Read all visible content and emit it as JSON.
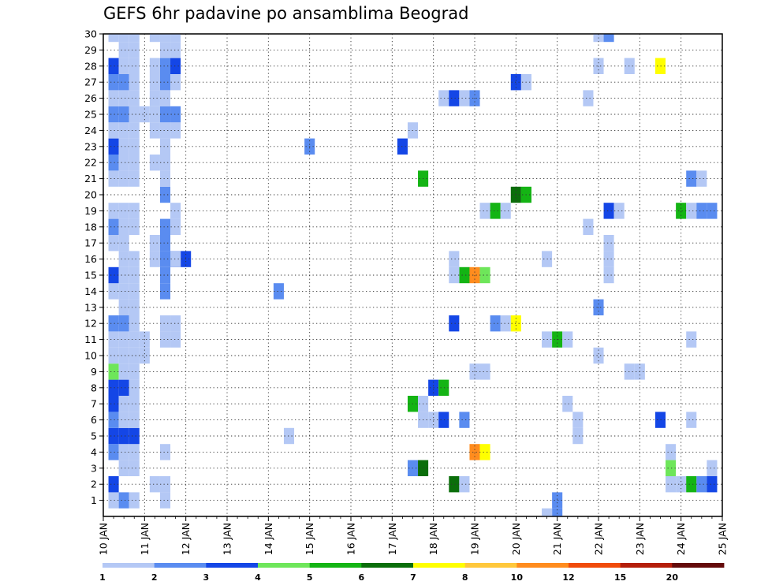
{
  "chart_data": {
    "type": "heatmap",
    "title": "GEFS 6hr padavine po ansamblima Beograd",
    "xlabel": "",
    "ylabel": "",
    "x_ticks": [
      "10 JAN",
      "11 JAN",
      "12 JAN",
      "13 JAN",
      "14 JAN",
      "15 JAN",
      "16 JAN",
      "17 JAN",
      "18 JAN",
      "19 JAN",
      "20 JAN",
      "21 JAN",
      "22 JAN",
      "23 JAN",
      "24 JAN",
      "25 JAN"
    ],
    "x_tick_days": [
      10,
      11,
      12,
      13,
      14,
      15,
      16,
      17,
      18,
      19,
      20,
      21,
      22,
      23,
      24,
      25
    ],
    "xlim": [
      10,
      25
    ],
    "y_ticks": [
      1,
      2,
      3,
      4,
      5,
      6,
      7,
      8,
      9,
      10,
      11,
      12,
      13,
      14,
      15,
      16,
      17,
      18,
      19,
      20,
      21,
      22,
      23,
      24,
      25,
      26,
      27,
      28,
      29,
      30
    ],
    "ylim": [
      0,
      30
    ],
    "grid": true,
    "colorbar": {
      "labels": [
        "1",
        "2",
        "3",
        "4",
        "5",
        "6",
        "7",
        "8",
        "10",
        "12",
        "15",
        "20"
      ],
      "colors": [
        "#b4c8f5",
        "#5a8cf0",
        "#1446e6",
        "#6ee65a",
        "#14b414",
        "#0a6e0a",
        "#ffff00",
        "#ffc83c",
        "#ff8c1e",
        "#f04b0a",
        "#b41e0a",
        "#640a0a"
      ]
    },
    "cell_step_days": 0.25,
    "cells": [
      [
        1,
        10.25,
        1
      ],
      [
        3,
        10.25,
        2
      ],
      [
        2,
        10.5,
        1
      ],
      [
        1,
        10.75,
        1
      ],
      [
        1,
        11.5,
        1
      ],
      [
        1,
        11.5,
        4
      ],
      [
        1,
        11.25,
        2
      ],
      [
        1,
        11.5,
        2
      ],
      [
        1,
        10.5,
        3
      ],
      [
        1,
        10.75,
        3
      ],
      [
        2,
        10.25,
        4
      ],
      [
        1,
        10.5,
        4
      ],
      [
        1,
        10.75,
        4
      ],
      [
        3,
        10.25,
        5
      ],
      [
        3,
        10.5,
        5
      ],
      [
        3,
        10.75,
        5
      ],
      [
        2,
        10.25,
        6
      ],
      [
        1,
        10.5,
        6
      ],
      [
        1,
        10.75,
        6
      ],
      [
        3,
        10.25,
        7
      ],
      [
        1,
        10.5,
        7
      ],
      [
        1,
        10.75,
        7
      ],
      [
        3,
        10.25,
        8
      ],
      [
        3,
        10.5,
        8
      ],
      [
        1,
        10.75,
        8
      ],
      [
        4,
        10.25,
        9
      ],
      [
        1,
        10.5,
        9
      ],
      [
        1,
        10.75,
        9
      ],
      [
        1,
        10.25,
        10
      ],
      [
        1,
        10.5,
        10
      ],
      [
        1,
        10.75,
        10
      ],
      [
        1,
        11.0,
        10
      ],
      [
        1,
        10.25,
        11
      ],
      [
        1,
        10.5,
        11
      ],
      [
        1,
        10.75,
        11
      ],
      [
        1,
        11.0,
        11
      ],
      [
        1,
        11.5,
        11
      ],
      [
        1,
        11.75,
        11
      ],
      [
        2,
        10.25,
        12
      ],
      [
        2,
        10.5,
        12
      ],
      [
        1,
        10.75,
        12
      ],
      [
        1,
        11.5,
        12
      ],
      [
        1,
        11.75,
        12
      ],
      [
        1,
        10.5,
        13
      ],
      [
        1,
        10.75,
        13
      ],
      [
        1,
        10.25,
        14
      ],
      [
        1,
        10.5,
        14
      ],
      [
        1,
        10.75,
        14
      ],
      [
        2,
        11.5,
        14
      ],
      [
        3,
        10.25,
        15
      ],
      [
        1,
        10.5,
        15
      ],
      [
        1,
        10.75,
        15
      ],
      [
        2,
        11.5,
        15
      ],
      [
        1,
        10.5,
        16
      ],
      [
        1,
        10.75,
        16
      ],
      [
        2,
        11.5,
        16
      ],
      [
        3,
        11.75,
        16
      ],
      [
        3,
        12.0,
        16
      ],
      [
        1,
        10.25,
        17
      ],
      [
        1,
        10.5,
        17
      ],
      [
        2,
        11.5,
        17
      ],
      [
        1,
        11.25,
        17
      ],
      [
        2,
        10.25,
        18
      ],
      [
        1,
        10.5,
        18
      ],
      [
        1,
        10.75,
        18
      ],
      [
        2,
        11.5,
        18
      ],
      [
        1,
        11.75,
        18
      ],
      [
        1,
        10.25,
        19
      ],
      [
        1,
        10.5,
        19
      ],
      [
        1,
        10.75,
        19
      ],
      [
        1,
        11.75,
        19
      ],
      [
        2,
        11.5,
        20
      ],
      [
        1,
        10.25,
        21
      ],
      [
        1,
        10.5,
        21
      ],
      [
        1,
        10.75,
        21
      ],
      [
        1,
        11.5,
        21
      ],
      [
        2,
        10.25,
        22
      ],
      [
        1,
        10.5,
        22
      ],
      [
        1,
        10.75,
        22
      ],
      [
        1,
        11.5,
        22
      ],
      [
        1,
        11.25,
        22
      ],
      [
        3,
        10.25,
        23
      ],
      [
        1,
        10.5,
        23
      ],
      [
        1,
        10.75,
        23
      ],
      [
        1,
        11.5,
        23
      ],
      [
        1,
        10.25,
        24
      ],
      [
        1,
        10.5,
        24
      ],
      [
        1,
        10.75,
        24
      ],
      [
        1,
        11.25,
        24
      ],
      [
        1,
        11.5,
        24
      ],
      [
        1,
        11.75,
        24
      ],
      [
        2,
        10.25,
        25
      ],
      [
        2,
        10.5,
        25
      ],
      [
        1,
        10.75,
        25
      ],
      [
        1,
        11.25,
        25
      ],
      [
        2,
        11.5,
        25
      ],
      [
        2,
        11.75,
        25
      ],
      [
        1,
        10.25,
        26
      ],
      [
        1,
        10.5,
        26
      ],
      [
        1,
        10.75,
        26
      ],
      [
        2,
        10.25,
        27
      ],
      [
        2,
        10.5,
        27
      ],
      [
        1,
        10.75,
        27
      ],
      [
        2,
        11.5,
        27
      ],
      [
        1,
        11.75,
        27
      ],
      [
        1,
        11.25,
        27
      ],
      [
        3,
        10.25,
        28
      ],
      [
        1,
        10.5,
        28
      ],
      [
        1,
        10.75,
        28
      ],
      [
        2,
        11.5,
        28
      ],
      [
        3,
        11.75,
        28
      ],
      [
        1,
        11.25,
        28
      ],
      [
        1,
        11.5,
        29
      ],
      [
        1,
        11.75,
        29
      ],
      [
        1,
        10.5,
        29
      ],
      [
        1,
        10.75,
        29
      ],
      [
        1,
        10.25,
        30
      ],
      [
        1,
        10.5,
        30
      ],
      [
        1,
        10.75,
        30
      ],
      [
        1,
        11.5,
        30
      ],
      [
        1,
        11.75,
        30
      ],
      [
        1,
        11.25,
        30
      ],
      [
        1,
        11.5,
        31
      ],
      [
        1,
        11.75,
        31
      ],
      [
        1,
        12.0,
        31
      ],
      [
        1,
        12.25,
        31
      ],
      [
        2,
        14.25,
        14
      ],
      [
        1,
        14.5,
        5
      ],
      [
        2,
        15.0,
        23
      ],
      [
        1,
        11.75,
        16
      ],
      [
        1,
        11.25,
        16
      ],
      [
        1,
        10.75,
        25
      ],
      [
        1,
        11.0,
        25
      ],
      [
        1,
        11.25,
        26
      ],
      [
        1,
        11.5,
        26
      ],
      [
        3,
        17.25,
        23
      ],
      [
        1,
        17.5,
        24
      ],
      [
        5,
        17.75,
        21
      ],
      [
        2,
        17.5,
        3
      ],
      [
        6,
        17.75,
        3
      ],
      [
        5,
        17.5,
        7
      ],
      [
        1,
        17.75,
        7
      ],
      [
        3,
        18.0,
        8
      ],
      [
        5,
        18.25,
        8
      ],
      [
        1,
        18.0,
        6
      ],
      [
        3,
        18.25,
        6
      ],
      [
        1,
        17.75,
        6
      ],
      [
        2,
        18.75,
        6
      ],
      [
        1,
        18.25,
        26
      ],
      [
        3,
        18.5,
        26
      ],
      [
        1,
        18.75,
        26
      ],
      [
        2,
        19.0,
        26
      ],
      [
        1,
        18.5,
        16
      ],
      [
        5,
        18.75,
        15
      ],
      [
        9,
        19.0,
        15
      ],
      [
        4,
        19.25,
        15
      ],
      [
        1,
        18.5,
        15
      ],
      [
        3,
        18.5,
        12
      ],
      [
        2,
        19.5,
        12
      ],
      [
        1,
        19.75,
        12
      ],
      [
        7,
        20.0,
        12
      ],
      [
        1,
        19.25,
        19
      ],
      [
        5,
        19.5,
        19
      ],
      [
        1,
        19.75,
        19
      ],
      [
        6,
        20.0,
        20
      ],
      [
        5,
        20.25,
        20
      ],
      [
        3,
        20.0,
        27
      ],
      [
        1,
        20.25,
        27
      ],
      [
        9,
        19.0,
        4
      ],
      [
        7,
        19.25,
        4
      ],
      [
        1,
        19.0,
        9
      ],
      [
        1,
        19.25,
        9
      ],
      [
        6,
        18.5,
        2
      ],
      [
        1,
        18.75,
        2
      ],
      [
        2,
        21.0,
        0
      ],
      [
        1,
        20.75,
        0
      ],
      [
        2,
        21.0,
        1
      ],
      [
        1,
        20.75,
        11
      ],
      [
        5,
        21.0,
        11
      ],
      [
        1,
        21.25,
        11
      ],
      [
        1,
        21.25,
        7
      ],
      [
        1,
        21.5,
        6
      ],
      [
        1,
        21.5,
        5
      ],
      [
        1,
        20.75,
        16
      ],
      [
        1,
        21.75,
        18
      ],
      [
        1,
        21.75,
        26
      ],
      [
        1,
        22.0,
        10
      ],
      [
        2,
        22.0,
        13
      ],
      [
        1,
        22.25,
        16
      ],
      [
        1,
        22.25,
        15
      ],
      [
        1,
        22.25,
        17
      ],
      [
        3,
        22.25,
        19
      ],
      [
        1,
        22.5,
        19
      ],
      [
        2,
        22.25,
        30
      ],
      [
        1,
        22.0,
        30
      ],
      [
        1,
        22.0,
        28
      ],
      [
        1,
        22.75,
        9
      ],
      [
        1,
        23.0,
        9
      ],
      [
        1,
        22.75,
        28
      ],
      [
        7,
        23.5,
        28
      ],
      [
        3,
        23.5,
        6
      ],
      [
        1,
        23.75,
        4
      ],
      [
        4,
        23.75,
        3
      ],
      [
        1,
        23.75,
        2
      ],
      [
        5,
        24.0,
        19
      ],
      [
        1,
        24.25,
        19
      ],
      [
        2,
        24.5,
        19
      ],
      [
        2,
        24.75,
        19
      ],
      [
        2,
        24.25,
        21
      ],
      [
        1,
        24.5,
        21
      ],
      [
        1,
        24.25,
        11
      ],
      [
        1,
        24.25,
        6
      ],
      [
        1,
        24.0,
        2
      ],
      [
        5,
        24.25,
        2
      ],
      [
        2,
        24.5,
        2
      ],
      [
        3,
        24.75,
        2
      ],
      [
        1,
        24.75,
        3
      ]
    ]
  }
}
